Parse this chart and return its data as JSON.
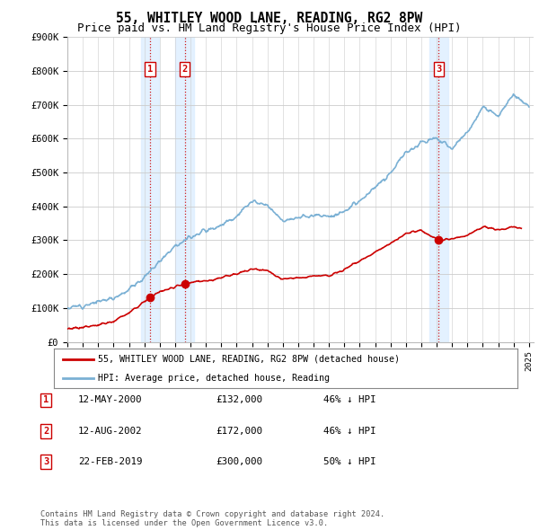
{
  "title": "55, WHITLEY WOOD LANE, READING, RG2 8PW",
  "subtitle": "Price paid vs. HM Land Registry's House Price Index (HPI)",
  "title_fontsize": 10.5,
  "subtitle_fontsize": 9,
  "hpi_color": "#7ab0d4",
  "price_color": "#cc0000",
  "shading_color": "#ddeeff",
  "ylim": [
    0,
    900000
  ],
  "yticks": [
    0,
    100000,
    200000,
    300000,
    400000,
    500000,
    600000,
    700000,
    800000,
    900000
  ],
  "ytick_labels": [
    "£0",
    "£100K",
    "£200K",
    "£300K",
    "£400K",
    "£500K",
    "£600K",
    "£700K",
    "£800K",
    "£900K"
  ],
  "xmin": 1995.0,
  "xmax": 2025.3,
  "sales": [
    {
      "label": "1",
      "date_x": 2000.37,
      "price": 132000
    },
    {
      "label": "2",
      "date_x": 2002.62,
      "price": 172000
    },
    {
      "label": "3",
      "date_x": 2019.13,
      "price": 300000
    }
  ],
  "sale_table": [
    {
      "num": "1",
      "date": "12-MAY-2000",
      "price": "£132,000",
      "note": "46% ↓ HPI"
    },
    {
      "num": "2",
      "date": "12-AUG-2002",
      "price": "£172,000",
      "note": "46% ↓ HPI"
    },
    {
      "num": "3",
      "date": "22-FEB-2019",
      "price": "£300,000",
      "note": "50% ↓ HPI"
    }
  ],
  "legend_label_red": "55, WHITLEY WOOD LANE, READING, RG2 8PW (detached house)",
  "legend_label_blue": "HPI: Average price, detached house, Reading",
  "footer": "Contains HM Land Registry data © Crown copyright and database right 2024.\nThis data is licensed under the Open Government Licence v3.0.",
  "background_color": "#ffffff",
  "grid_color": "#cccccc",
  "hpi_anchors_x": [
    1995,
    1996,
    1997,
    1998,
    1999,
    2000,
    2001,
    2002,
    2003,
    2004,
    2005,
    2006,
    2007,
    2008,
    2009,
    2010,
    2011,
    2012,
    2013,
    2014,
    2015,
    2016,
    2017,
    2018,
    2019,
    2020,
    2021,
    2022,
    2023,
    2024,
    2025
  ],
  "hpi_anchors_y": [
    100000,
    108000,
    118000,
    130000,
    155000,
    190000,
    240000,
    285000,
    310000,
    330000,
    345000,
    370000,
    415000,
    400000,
    360000,
    365000,
    375000,
    370000,
    385000,
    415000,
    455000,
    500000,
    560000,
    590000,
    600000,
    570000,
    620000,
    690000,
    670000,
    730000,
    690000
  ],
  "price_anchors_x": [
    1995,
    1996,
    1997,
    1998,
    1999,
    2000.37,
    2001,
    2002.62,
    2003,
    2004,
    2005,
    2006,
    2007,
    2008,
    2009,
    2010,
    2011,
    2012,
    2013,
    2014,
    2015,
    2016,
    2017,
    2018,
    2019.13,
    2020,
    2021,
    2022,
    2023,
    2024,
    2024.5
  ],
  "price_anchors_y": [
    38000,
    42000,
    50000,
    60000,
    85000,
    132000,
    148000,
    172000,
    175000,
    180000,
    190000,
    200000,
    215000,
    210000,
    185000,
    190000,
    195000,
    195000,
    215000,
    240000,
    265000,
    290000,
    320000,
    330000,
    300000,
    305000,
    315000,
    340000,
    330000,
    340000,
    335000
  ]
}
